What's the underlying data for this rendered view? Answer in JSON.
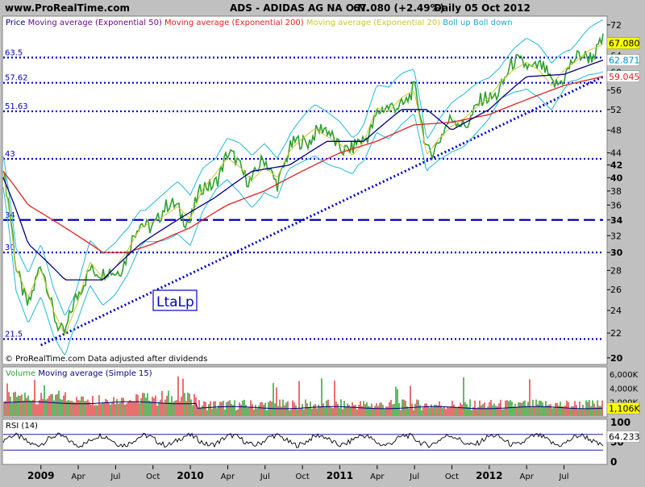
{
  "header": {
    "site": "www.ProRealTime.com",
    "instrument": "ADS - ADIDAS AG NA O.N.",
    "quote": "67.080 (+2.49%)",
    "period_date": "Daily  05 Oct 2012"
  },
  "price_panel": {
    "legend": [
      {
        "text": "Price",
        "color": "#000080"
      },
      {
        "text": "Moving average (Exponential 50)",
        "color": "#6a0a8a"
      },
      {
        "text": "Moving average (Exponential 200)",
        "color": "#e02020"
      },
      {
        "text": "Moving average (Exponential 20)",
        "color": "#c8c832"
      },
      {
        "text": "Boll up Boll down",
        "color": "#20a8c8"
      }
    ],
    "footnote": "© ProRealTime.com  Data adjusted after dividends",
    "annotation": "LtaLp",
    "levels": [
      {
        "label": "63.5",
        "value": 63.5,
        "style": "dotted"
      },
      {
        "label": "57.62",
        "value": 57.62,
        "style": "dotted"
      },
      {
        "label": "51.63",
        "value": 51.63,
        "style": "dotted"
      },
      {
        "label": "43",
        "value": 43,
        "style": "dotted"
      },
      {
        "label": "34",
        "value": 34,
        "style": "dashed"
      },
      {
        "label": "30",
        "value": 30,
        "style": "dotted"
      },
      {
        "label": "21.5",
        "value": 21.5,
        "style": "dotted"
      }
    ],
    "y_ticks": [
      {
        "label": "72",
        "value": 72,
        "bold": false
      },
      {
        "label": "64",
        "value": 64,
        "bold": false
      },
      {
        "label": "60",
        "value": 60,
        "bold": false
      },
      {
        "label": "56",
        "value": 56,
        "bold": false
      },
      {
        "label": "52",
        "value": 52,
        "bold": false
      },
      {
        "label": "48",
        "value": 48,
        "bold": false
      },
      {
        "label": "44",
        "value": 44,
        "bold": false
      },
      {
        "label": "42",
        "value": 42,
        "bold": true
      },
      {
        "label": "40",
        "value": 40,
        "bold": true
      },
      {
        "label": "38",
        "value": 38,
        "bold": false
      },
      {
        "label": "36",
        "value": 36,
        "bold": false
      },
      {
        "label": "34",
        "value": 34,
        "bold": true
      },
      {
        "label": "32",
        "value": 32,
        "bold": false
      },
      {
        "label": "30",
        "value": 30,
        "bold": true
      },
      {
        "label": "28",
        "value": 28,
        "bold": false
      },
      {
        "label": "26",
        "value": 26,
        "bold": false
      },
      {
        "label": "24",
        "value": 24,
        "bold": false
      },
      {
        "label": "22",
        "value": 22,
        "bold": false
      },
      {
        "label": "20",
        "value": 20,
        "bold": true
      }
    ],
    "value_tags": [
      {
        "label": "67.080",
        "value": 67.08,
        "bg": "#ffff00",
        "fg": "#000000"
      },
      {
        "label": "62.871",
        "value": 62.871,
        "bg": "#ffffff",
        "fg": "#0090c0"
      },
      {
        "label": "59.045",
        "value": 59.045,
        "bg": "#ffffff",
        "fg": "#e02020"
      }
    ],
    "colors": {
      "bg": "#ffffff",
      "price": "#30a030",
      "ema20": "#c8c832",
      "ema50": "#000080",
      "ema200": "#e02020",
      "boll": "#20b8d8",
      "levels": "#0000c8"
    }
  },
  "volume_panel": {
    "legend": [
      {
        "text": "Volume",
        "color": "#30a030"
      },
      {
        "text": "Moving average (Simple 15)",
        "color": "#000080"
      }
    ],
    "y_ticks": [
      {
        "label": "6,000K",
        "value": 6000
      },
      {
        "label": "4,000K",
        "value": 4000
      },
      {
        "label": "2,000K",
        "value": 2000
      }
    ],
    "last_tag": {
      "label": "1,106K",
      "value": 1106
    }
  },
  "rsi_panel": {
    "legend": [
      {
        "text": "RSI (14)",
        "color": "#000000"
      }
    ],
    "y_ticks": [
      {
        "label": "100",
        "value": 100
      },
      {
        "label": "50",
        "value": 50
      },
      {
        "label": "0",
        "value": 0
      }
    ],
    "bands": [
      70,
      30
    ],
    "last_tag": {
      "label": "64.233",
      "value": 64.233
    }
  },
  "x_axis": {
    "ticks": [
      {
        "label": "2009",
        "t": 0.0,
        "bold": true
      },
      {
        "label": "Apr",
        "t": 0.25,
        "bold": false
      },
      {
        "label": "Jul",
        "t": 0.5,
        "bold": false
      },
      {
        "label": "Oct",
        "t": 0.75,
        "bold": false
      },
      {
        "label": "2010",
        "t": 1.0,
        "bold": true
      },
      {
        "label": "Apr",
        "t": 1.25,
        "bold": false
      },
      {
        "label": "Jul",
        "t": 1.5,
        "bold": false
      },
      {
        "label": "Oct",
        "t": 1.75,
        "bold": false
      },
      {
        "label": "2011",
        "t": 2.0,
        "bold": true
      },
      {
        "label": "Apr",
        "t": 2.25,
        "bold": false
      },
      {
        "label": "Jul",
        "t": 2.5,
        "bold": false
      },
      {
        "label": "Oct",
        "t": 2.75,
        "bold": false
      },
      {
        "label": "2012",
        "t": 3.0,
        "bold": true
      },
      {
        "label": "Apr",
        "t": 3.25,
        "bold": false
      },
      {
        "label": "Jul",
        "t": 3.5,
        "bold": false
      }
    ]
  },
  "chart_data": {
    "type": "line",
    "title": "ADS - ADIDAS AG NA O.N.",
    "y_scale": "log",
    "ylim": [
      19.5,
      74
    ],
    "x_range": [
      "2008-10-01",
      "2012-10-05"
    ],
    "series": [
      {
        "name": "Price",
        "points": [
          [
            "2008-10-01",
            41
          ],
          [
            "2008-11-01",
            28
          ],
          [
            "2008-12-01",
            25
          ],
          [
            "2009-01-01",
            28
          ],
          [
            "2009-02-01",
            24
          ],
          [
            "2009-03-01",
            22
          ],
          [
            "2009-04-01",
            25
          ],
          [
            "2009-05-01",
            29
          ],
          [
            "2009-06-01",
            27
          ],
          [
            "2009-07-01",
            28
          ],
          [
            "2009-08-01",
            30
          ],
          [
            "2009-09-01",
            33
          ],
          [
            "2009-10-01",
            34
          ],
          [
            "2009-11-01",
            35
          ],
          [
            "2009-12-01",
            36
          ],
          [
            "2010-01-01",
            34
          ],
          [
            "2010-02-01",
            38
          ],
          [
            "2010-03-01",
            40
          ],
          [
            "2010-04-01",
            43
          ],
          [
            "2010-05-01",
            42
          ],
          [
            "2010-06-01",
            40
          ],
          [
            "2010-07-01",
            42
          ],
          [
            "2010-08-01",
            40
          ],
          [
            "2010-09-01",
            44
          ],
          [
            "2010-10-01",
            46
          ],
          [
            "2010-11-01",
            48
          ],
          [
            "2010-12-01",
            47
          ],
          [
            "2011-01-01",
            46
          ],
          [
            "2011-02-01",
            44
          ],
          [
            "2011-03-01",
            46
          ],
          [
            "2011-04-01",
            52
          ],
          [
            "2011-05-01",
            51
          ],
          [
            "2011-06-01",
            54
          ],
          [
            "2011-07-01",
            56
          ],
          [
            "2011-08-01",
            44
          ],
          [
            "2011-09-01",
            47
          ],
          [
            "2011-10-01",
            49
          ],
          [
            "2011-11-01",
            50
          ],
          [
            "2011-12-01",
            52
          ],
          [
            "2012-01-01",
            54
          ],
          [
            "2012-02-01",
            58
          ],
          [
            "2012-03-01",
            61
          ],
          [
            "2012-04-01",
            63
          ],
          [
            "2012-05-01",
            61
          ],
          [
            "2012-06-01",
            57
          ],
          [
            "2012-07-01",
            60
          ],
          [
            "2012-08-01",
            62
          ],
          [
            "2012-09-01",
            65
          ],
          [
            "2012-10-05",
            67.08
          ]
        ]
      },
      {
        "name": "Moving average (Exponential 200)",
        "points": [
          [
            "2008-10-01",
            41
          ],
          [
            "2008-12-01",
            36
          ],
          [
            "2009-03-01",
            33
          ],
          [
            "2009-06-01",
            30
          ],
          [
            "2009-08-01",
            30
          ],
          [
            "2009-10-01",
            31
          ],
          [
            "2010-01-01",
            33
          ],
          [
            "2010-04-01",
            36
          ],
          [
            "2010-07-01",
            38
          ],
          [
            "2010-10-01",
            41
          ],
          [
            "2011-01-01",
            44
          ],
          [
            "2011-04-01",
            46
          ],
          [
            "2011-07-01",
            49
          ],
          [
            "2011-10-01",
            49.5
          ],
          [
            "2012-01-01",
            51
          ],
          [
            "2012-04-01",
            54
          ],
          [
            "2012-07-01",
            57
          ],
          [
            "2012-10-05",
            59.045
          ]
        ]
      },
      {
        "name": "Moving average (Exponential 50)",
        "points": [
          [
            "2008-10-01",
            40
          ],
          [
            "2008-12-01",
            31
          ],
          [
            "2009-03-01",
            27
          ],
          [
            "2009-06-01",
            27
          ],
          [
            "2009-09-01",
            31
          ],
          [
            "2009-12-01",
            34
          ],
          [
            "2010-03-01",
            37
          ],
          [
            "2010-06-01",
            41
          ],
          [
            "2010-09-01",
            42
          ],
          [
            "2010-12-01",
            46
          ],
          [
            "2011-03-01",
            46
          ],
          [
            "2011-06-01",
            52
          ],
          [
            "2011-08-01",
            52
          ],
          [
            "2011-10-01",
            48
          ],
          [
            "2012-01-01",
            52
          ],
          [
            "2012-04-01",
            59
          ],
          [
            "2012-07-01",
            59.5
          ],
          [
            "2012-10-05",
            62.871
          ]
        ]
      }
    ],
    "trendline": {
      "from": [
        "2009-01-01",
        21.0
      ],
      "to": [
        "2012-10-05",
        59.0
      ]
    },
    "annotation": "LtaLp"
  }
}
